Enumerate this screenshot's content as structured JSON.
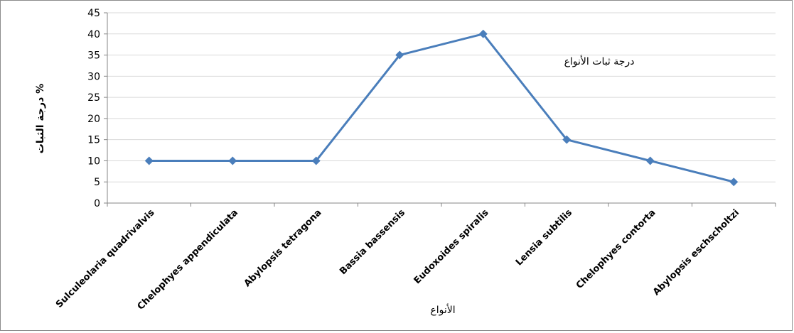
{
  "chart_data": {
    "type": "line",
    "title": "",
    "xlabel": "الأنواع",
    "ylabel": "درجة الثبات %",
    "categories": [
      "Sulculeolaria quadrivalvis",
      "Chelophyes appendiculata",
      "Abylopsis tetragona",
      "Bassia bassensis",
      "Eudoxoides spiralis",
      "Lensia subtilis",
      "Chelophyes contorta",
      "Abylopsis eschscholtzi"
    ],
    "series": [
      {
        "name": "درجة ثبات الأنواع",
        "values": [
          10,
          10,
          10,
          35,
          40,
          15,
          10,
          5
        ],
        "color": "#4a7ebb"
      }
    ],
    "ylim": [
      0,
      45
    ],
    "yticks": [
      0,
      5,
      10,
      15,
      20,
      25,
      30,
      35,
      40,
      45
    ],
    "grid": true,
    "legend": "inside-top-right"
  }
}
